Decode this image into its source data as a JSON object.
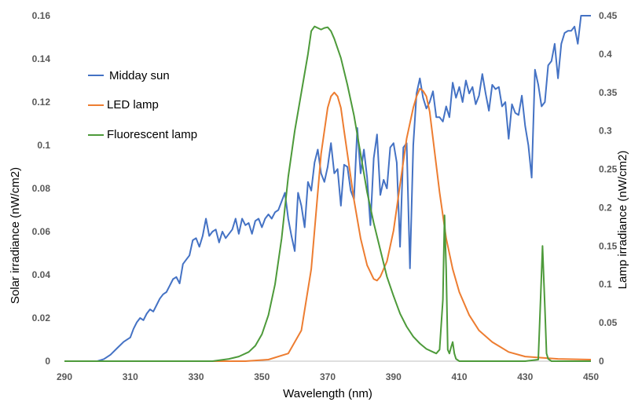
{
  "chart_data": {
    "type": "line",
    "title": "",
    "xlabel": "Wavelength (nm)",
    "ylabel": "Solar irradiance (nW/cm2)",
    "y2label": "Lamp irradiance (nW/cm2)",
    "xlim": [
      290,
      450
    ],
    "ylim": [
      0,
      0.16
    ],
    "y2lim": [
      0,
      0.45
    ],
    "x_ticks": [
      "290",
      "310",
      "330",
      "350",
      "370",
      "390",
      "410",
      "430",
      "450"
    ],
    "y_ticks": [
      "0",
      "0.02",
      "0.04",
      "0.06",
      "0.08",
      "0.1",
      "0.12",
      "0.14",
      "0.16"
    ],
    "y2_ticks": [
      "0",
      "0.05",
      "0.1",
      "0.15",
      "0.2",
      "0.25",
      "0.3",
      "0.35",
      "0.4",
      "0.45"
    ],
    "grid": false,
    "legend_position": "top-left",
    "series": [
      {
        "name": "Midday sun",
        "color": "#4472C4",
        "axis": "left",
        "x": [
          290,
          300,
          302,
          304,
          306,
          308,
          310,
          311,
          312,
          313,
          314,
          315,
          316,
          317,
          318,
          319,
          320,
          321,
          322,
          323,
          324,
          325,
          326,
          327,
          328,
          329,
          330,
          331,
          332,
          333,
          334,
          335,
          336,
          337,
          338,
          339,
          340,
          341,
          342,
          343,
          344,
          345,
          346,
          347,
          348,
          349,
          350,
          351,
          352,
          353,
          354,
          355,
          356,
          357,
          358,
          359,
          360,
          361,
          362,
          363,
          364,
          365,
          366,
          367,
          368,
          369,
          370,
          371,
          372,
          373,
          374,
          375,
          376,
          377,
          378,
          379,
          380,
          381,
          382,
          383,
          384,
          385,
          386,
          387,
          388,
          389,
          390,
          391,
          392,
          393,
          394,
          395,
          396,
          397,
          398,
          399,
          400,
          401,
          402,
          403,
          404,
          405,
          406,
          407,
          408,
          409,
          410,
          411,
          412,
          413,
          414,
          415,
          416,
          417,
          418,
          419,
          420,
          421,
          422,
          423,
          424,
          425,
          426,
          427,
          428,
          429,
          430,
          431,
          432,
          433,
          434,
          435,
          436,
          437,
          438,
          439,
          440,
          441,
          442,
          443,
          444,
          445,
          446,
          447,
          448,
          449,
          450
        ],
        "y": [
          0,
          0,
          0.001,
          0.003,
          0.006,
          0.009,
          0.011,
          0.015,
          0.018,
          0.02,
          0.019,
          0.022,
          0.024,
          0.023,
          0.026,
          0.029,
          0.031,
          0.032,
          0.035,
          0.038,
          0.039,
          0.036,
          0.045,
          0.047,
          0.049,
          0.056,
          0.057,
          0.053,
          0.058,
          0.066,
          0.058,
          0.06,
          0.061,
          0.055,
          0.06,
          0.057,
          0.059,
          0.061,
          0.066,
          0.059,
          0.066,
          0.063,
          0.064,
          0.059,
          0.065,
          0.066,
          0.062,
          0.066,
          0.068,
          0.066,
          0.069,
          0.07,
          0.074,
          0.078,
          0.066,
          0.058,
          0.051,
          0.078,
          0.072,
          0.062,
          0.083,
          0.079,
          0.092,
          0.098,
          0.087,
          0.083,
          0.09,
          0.101,
          0.087,
          0.089,
          0.072,
          0.091,
          0.09,
          0.079,
          0.075,
          0.108,
          0.087,
          0.098,
          0.085,
          0.063,
          0.094,
          0.105,
          0.077,
          0.084,
          0.08,
          0.099,
          0.101,
          0.092,
          0.053,
          0.099,
          0.101,
          0.043,
          0.1,
          0.124,
          0.131,
          0.122,
          0.117,
          0.12,
          0.125,
          0.113,
          0.113,
          0.111,
          0.118,
          0.113,
          0.129,
          0.122,
          0.127,
          0.12,
          0.13,
          0.124,
          0.127,
          0.119,
          0.123,
          0.133,
          0.124,
          0.116,
          0.128,
          0.126,
          0.127,
          0.118,
          0.12,
          0.103,
          0.119,
          0.115,
          0.114,
          0.123,
          0.109,
          0.1,
          0.085,
          0.135,
          0.128,
          0.118,
          0.12,
          0.137,
          0.139,
          0.147,
          0.131,
          0.147,
          0.152,
          0.153,
          0.153,
          0.155,
          0.147,
          0.16,
          0.16,
          0.16,
          0.16
        ]
      },
      {
        "name": "LED lamp",
        "color": "#ED7D31",
        "axis": "right",
        "x": [
          290,
          345,
          352,
          358,
          362,
          365,
          368,
          370,
          371,
          372,
          373,
          374,
          375,
          376,
          378,
          380,
          382,
          384,
          385,
          386,
          388,
          390,
          392,
          394,
          396,
          397,
          398,
          399,
          400,
          401,
          402,
          404,
          406,
          408,
          410,
          413,
          416,
          420,
          425,
          430,
          440,
          450
        ],
        "y": [
          0,
          0,
          0.002,
          0.01,
          0.04,
          0.12,
          0.27,
          0.33,
          0.345,
          0.35,
          0.345,
          0.33,
          0.3,
          0.27,
          0.21,
          0.16,
          0.125,
          0.107,
          0.105,
          0.11,
          0.13,
          0.17,
          0.23,
          0.29,
          0.33,
          0.345,
          0.355,
          0.352,
          0.345,
          0.325,
          0.29,
          0.22,
          0.16,
          0.12,
          0.09,
          0.06,
          0.04,
          0.025,
          0.012,
          0.006,
          0.003,
          0.002
        ]
      },
      {
        "name": "Fluorescent lamp",
        "color": "#4D9A3A",
        "axis": "right",
        "x": [
          290,
          335,
          340,
          343,
          346,
          348,
          350,
          352,
          354,
          356,
          358,
          360,
          362,
          364,
          365,
          366,
          367,
          368,
          369,
          370,
          371,
          372,
          374,
          376,
          378,
          380,
          382,
          384,
          386,
          388,
          390,
          392,
          394,
          396,
          398,
          400,
          402,
          403,
          404,
          405,
          405.5,
          406,
          406.5,
          407,
          407.5,
          408,
          408.5,
          409,
          410,
          420,
          430,
          434,
          434.7,
          435.3,
          436,
          436.5,
          437,
          438,
          440,
          450
        ],
        "y": [
          0,
          0,
          0.003,
          0.006,
          0.012,
          0.02,
          0.035,
          0.06,
          0.1,
          0.16,
          0.24,
          0.3,
          0.35,
          0.4,
          0.43,
          0.436,
          0.434,
          0.432,
          0.434,
          0.435,
          0.43,
          0.42,
          0.395,
          0.36,
          0.32,
          0.27,
          0.22,
          0.18,
          0.145,
          0.11,
          0.085,
          0.062,
          0.045,
          0.032,
          0.023,
          0.016,
          0.012,
          0.01,
          0.015,
          0.08,
          0.19,
          0.12,
          0.015,
          0.01,
          0.018,
          0.025,
          0.01,
          0.003,
          0,
          0,
          0,
          0.002,
          0.08,
          0.15,
          0.07,
          0.01,
          0.003,
          0,
          0,
          0
        ]
      }
    ]
  }
}
